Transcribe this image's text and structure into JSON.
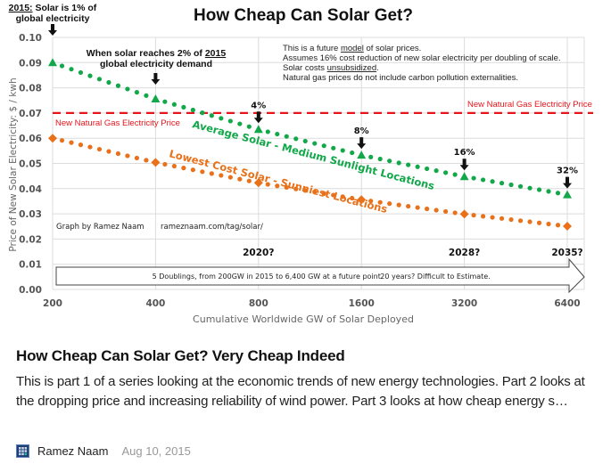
{
  "chart_data": {
    "type": "line",
    "title": "How Cheap Can Solar Get?",
    "xlabel": "Cumulative Worldwide GW of Solar Deployed",
    "ylabel": "Price of New Solar Electricity: $ / kwh",
    "x_scale": "log2",
    "x": [
      200,
      400,
      800,
      1600,
      3200,
      6400
    ],
    "x_tick_labels": [
      "200",
      "400",
      "800",
      "1600",
      "3200",
      "6400"
    ],
    "ylim": [
      0,
      0.1
    ],
    "y_ticks": [
      0.0,
      0.01,
      0.02,
      0.03,
      0.04,
      0.05,
      0.06,
      0.07,
      0.08,
      0.09,
      0.1
    ],
    "y_tick_labels": [
      "0.00",
      "0.01",
      "0.02",
      "0.03",
      "0.04",
      "0.05",
      "0.06",
      "0.07",
      "0.08",
      "0.09",
      "0.10"
    ],
    "grid": true,
    "series": [
      {
        "name": "Average Solar - Medium Sunlight Locations",
        "color": "#12a84a",
        "marker": "triangle",
        "style": "dotted",
        "values": [
          0.09,
          0.0756,
          0.0635,
          0.0533,
          0.0448,
          0.0376
        ]
      },
      {
        "name": "Lowest Cost Solar - Sunniest Locations",
        "color": "#e8711a",
        "marker": "diamond",
        "style": "dotted",
        "values": [
          0.06,
          0.0504,
          0.0423,
          0.0356,
          0.0299,
          0.0251
        ]
      }
    ],
    "reference_lines": [
      {
        "name": "New Natural Gas Electricity Price",
        "value": 0.07,
        "color": "#e8141b",
        "style": "dashed"
      }
    ],
    "annotations": {
      "start_prefix": "2015:",
      "start_rest": " Solar is 1% of",
      "start_line2": "global electricity",
      "two_pct_line1_prefix": "When solar reaches 2% of ",
      "two_pct_line1_underlined": "2015",
      "two_pct_line2": "global electricity demand",
      "percent_labels": [
        {
          "x": 800,
          "label": "4%"
        },
        {
          "x": 1600,
          "label": "8%"
        },
        {
          "x": 3200,
          "label": "16%"
        },
        {
          "x": 6400,
          "label": "32%"
        }
      ],
      "notes": {
        "line1_a": "This is a future ",
        "line1_u": "model",
        "line1_b": " of solar prices.",
        "line2": "Assumes 16% cost reduction of new solar electricity per doubling of scale.",
        "line3_a": "Solar costs ",
        "line3_u": "unsubsidized",
        "line3_b": ".",
        "line4": "Natural gas prices do not include carbon pollution externalities."
      },
      "gas_label_left": "New Natural Gas Electricity Price",
      "gas_label_right": "New Natural Gas Electricity Price",
      "credit": "Graph by Ramez Naam",
      "url": "rameznaam.com/tag/solar/",
      "years": [
        {
          "x": 800,
          "label": "2020?"
        },
        {
          "x": 3200,
          "label": "2028?"
        },
        {
          "x": 6400,
          "label": "2035?"
        }
      ],
      "arrow_text_1": "5 Doublings, from 200GW in 2015 to 6,400 GW at a future point.",
      "arrow_text_2": "20 years? Difficult to Estimate."
    }
  },
  "article": {
    "title": "How Cheap Can Solar Get? Very Cheap Indeed",
    "summary": "This is part 1 of a series looking at the economic trends of new energy technologies. Part 2 looks at the dropping price and increasing reliability of wind power. Part 3 looks at how cheap energy s…",
    "author": "Ramez Naam",
    "date": "Aug 10, 2015"
  }
}
